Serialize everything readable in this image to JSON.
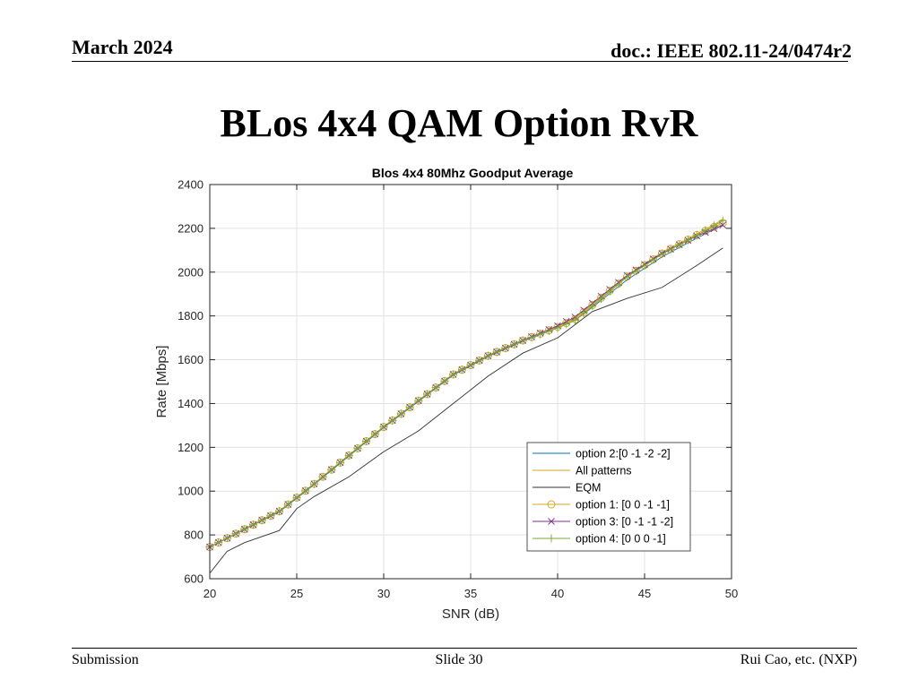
{
  "header": {
    "date": "March 2024",
    "doc": "doc.: IEEE 802.11-24/0474r2"
  },
  "slide_title": "BLos 4x4 QAM Option RvR",
  "footer": {
    "left": "Submission",
    "center": "Slide 30",
    "right": "Rui Cao, etc. (NXP)"
  },
  "chart_data": {
    "type": "line",
    "title": "Blos 4x4  80Mhz Goodput Average",
    "xlabel": "SNR (dB)",
    "ylabel": "Rate [Mbps]",
    "xlim": [
      20,
      50
    ],
    "ylim": [
      600,
      2400
    ],
    "xticks": [
      20,
      25,
      30,
      35,
      40,
      45,
      50
    ],
    "yticks": [
      600,
      800,
      1000,
      1200,
      1400,
      1600,
      1800,
      2000,
      2200,
      2400
    ],
    "grid": true,
    "legend_position": "lower-right",
    "series": [
      {
        "name": "option 2:[0 -1 -2 -2]",
        "color": "#0072bd",
        "marker": "none",
        "x": [
          20,
          22,
          24,
          26,
          28,
          30,
          32,
          34,
          36,
          38,
          40,
          41,
          42,
          44,
          46,
          48,
          49.5
        ],
        "y": [
          745,
          825,
          905,
          1030,
          1160,
          1290,
          1410,
          1530,
          1615,
          1685,
          1745,
          1780,
          1840,
          1965,
          2070,
          2155,
          2215
        ]
      },
      {
        "name": "All patterns",
        "color": "#d9a520",
        "marker": "none",
        "x": [
          20,
          22,
          24,
          26,
          28,
          30,
          32,
          34,
          36,
          38,
          40,
          41,
          42,
          44,
          46,
          48,
          49.5
        ],
        "y": [
          745,
          828,
          910,
          1035,
          1165,
          1295,
          1415,
          1535,
          1620,
          1690,
          1752,
          1790,
          1855,
          1985,
          2090,
          2175,
          2240
        ]
      },
      {
        "name": "EQM",
        "color": "#333333",
        "marker": "none",
        "x": [
          20,
          21,
          22,
          24,
          25,
          26,
          28,
          30,
          32,
          34,
          36,
          38,
          40,
          42,
          44,
          46,
          48,
          49.5
        ],
        "y": [
          625,
          725,
          765,
          820,
          920,
          975,
          1065,
          1180,
          1275,
          1400,
          1525,
          1630,
          1700,
          1820,
          1880,
          1930,
          2030,
          2110
        ]
      },
      {
        "name": "option 1: [0  0 -1 -1]",
        "color": "#d9a520",
        "marker": "circle",
        "x": [
          20,
          22,
          24,
          26,
          28,
          30,
          32,
          34,
          36,
          38,
          40,
          41,
          42,
          44,
          46,
          48,
          49.5
        ],
        "y": [
          745,
          826,
          908,
          1033,
          1163,
          1293,
          1413,
          1533,
          1618,
          1688,
          1750,
          1785,
          1850,
          1980,
          2085,
          2170,
          2225
        ]
      },
      {
        "name": "option 3: [0 -1 -1 -2]",
        "color": "#7e2f8e",
        "marker": "x",
        "x": [
          20,
          22,
          24,
          26,
          28,
          30,
          32,
          34,
          36,
          38,
          40,
          41,
          42,
          44,
          46,
          48,
          49.5
        ],
        "y": [
          745,
          826,
          908,
          1033,
          1163,
          1293,
          1413,
          1533,
          1618,
          1688,
          1755,
          1795,
          1858,
          1985,
          2085,
          2165,
          2215
        ]
      },
      {
        "name": "option 4: [0 0 0 -1]",
        "color": "#77ac30",
        "marker": "plus",
        "x": [
          20,
          22,
          24,
          26,
          28,
          30,
          32,
          34,
          36,
          38,
          40,
          41,
          42,
          44,
          46,
          48,
          49.5
        ],
        "y": [
          745,
          826,
          908,
          1033,
          1163,
          1293,
          1413,
          1533,
          1618,
          1688,
          1745,
          1780,
          1845,
          1978,
          2082,
          2168,
          2235
        ]
      }
    ]
  }
}
